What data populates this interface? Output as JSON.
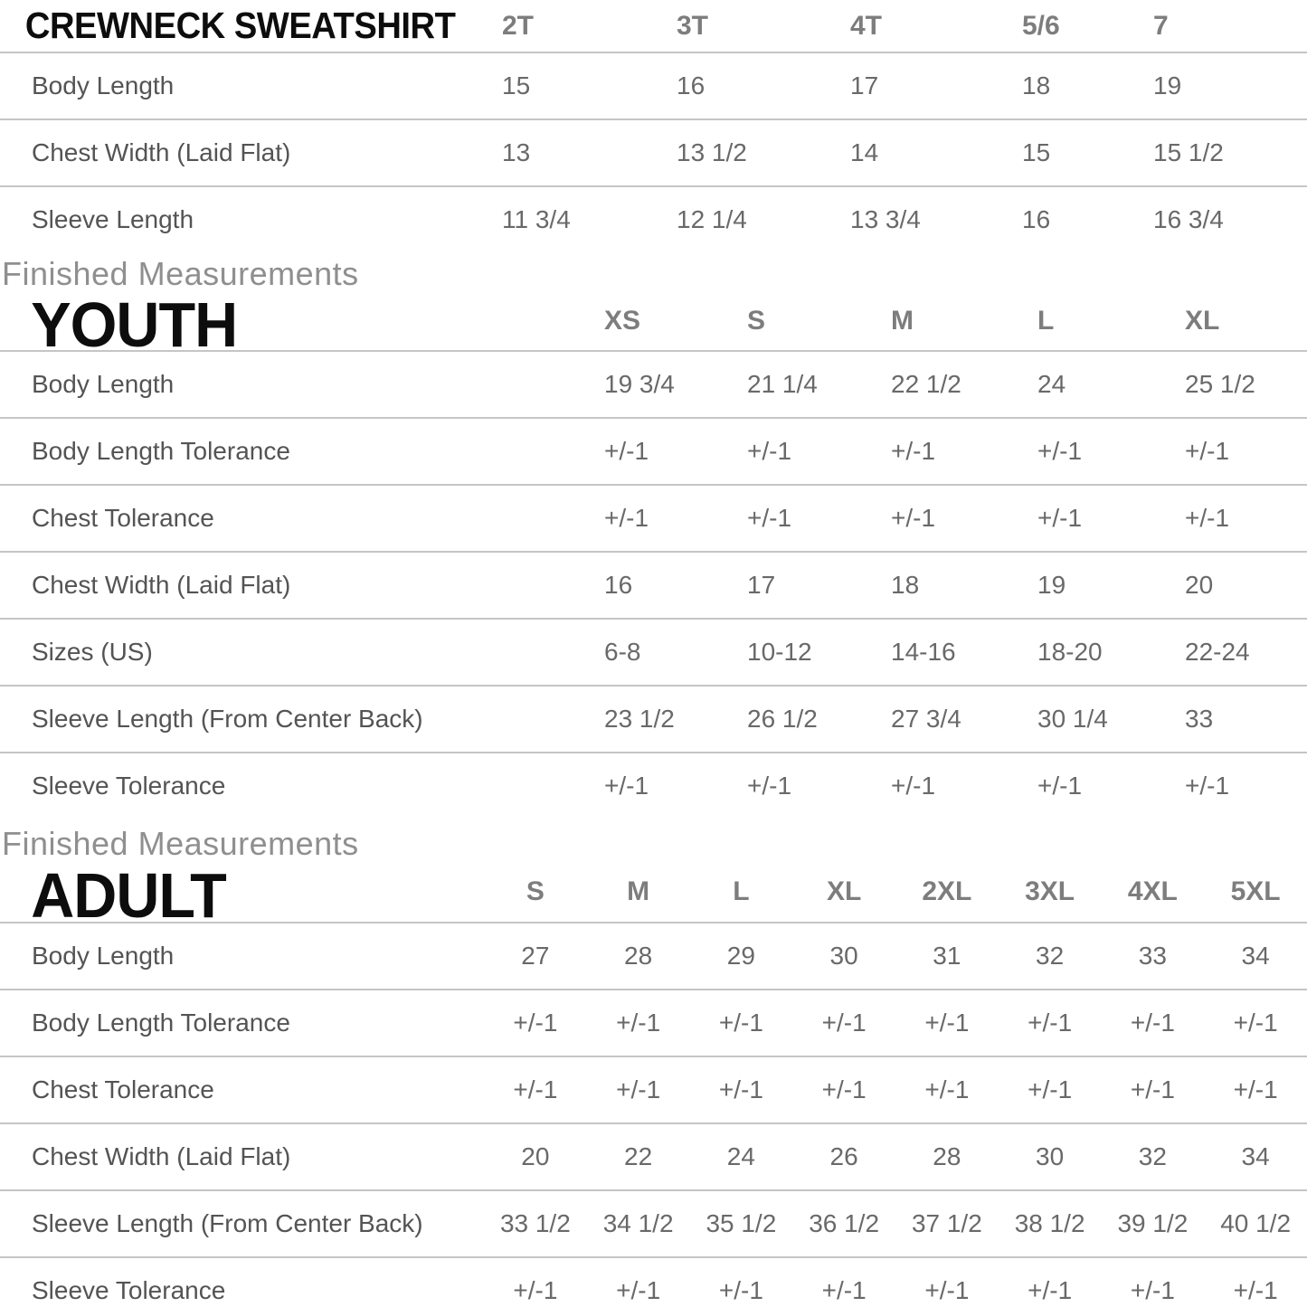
{
  "page": {
    "background": "#ffffff",
    "divider_color": "#c5c5c5",
    "title_color": "#0d0d0d",
    "column_header_color": "#7d7d7d",
    "row_label_color": "#545454",
    "value_color": "#696969",
    "section_label_color": "#8f8f8f"
  },
  "sections": [
    {
      "id": "toddler",
      "section_label": "",
      "title": "CREWNECK SWEATSHIRT",
      "columns": [
        "2T",
        "3T",
        "4T",
        "5/6",
        "7"
      ],
      "rows": [
        {
          "label": "Body Length",
          "values": [
            "15",
            "16",
            "17",
            "18",
            "19"
          ]
        },
        {
          "label": "Chest Width (Laid Flat)",
          "values": [
            "13",
            "13 1/2",
            "14",
            "15",
            "15 1/2"
          ]
        },
        {
          "label": "Sleeve Length",
          "values": [
            "11 3/4",
            "12 1/4",
            "13 3/4",
            "16",
            "16 3/4"
          ]
        }
      ]
    },
    {
      "id": "youth",
      "section_label": "Finished Measurements",
      "title": "YOUTH",
      "columns": [
        "XS",
        "S",
        "M",
        "L",
        "XL"
      ],
      "rows": [
        {
          "label": "Body Length",
          "values": [
            "19 3/4",
            "21 1/4",
            "22 1/2",
            "24",
            "25 1/2"
          ]
        },
        {
          "label": "Body Length Tolerance",
          "values": [
            "+/-1",
            "+/-1",
            "+/-1",
            "+/-1",
            "+/-1"
          ]
        },
        {
          "label": "Chest Tolerance",
          "values": [
            "+/-1",
            "+/-1",
            "+/-1",
            "+/-1",
            "+/-1"
          ]
        },
        {
          "label": "Chest Width (Laid Flat)",
          "values": [
            "16",
            "17",
            "18",
            "19",
            "20"
          ]
        },
        {
          "label": "Sizes (US)",
          "values": [
            "6-8",
            "10-12",
            "14-16",
            "18-20",
            "22-24"
          ]
        },
        {
          "label": "Sleeve Length (From Center Back)",
          "values": [
            "23 1/2",
            "26 1/2",
            "27 3/4",
            "30 1/4",
            "33"
          ]
        },
        {
          "label": "Sleeve Tolerance",
          "values": [
            "+/-1",
            "+/-1",
            "+/-1",
            "+/-1",
            "+/-1"
          ]
        }
      ]
    },
    {
      "id": "adult",
      "section_label": "Finished Measurements",
      "title": "ADULT",
      "columns": [
        "S",
        "M",
        "L",
        "XL",
        "2XL",
        "3XL",
        "4XL",
        "5XL"
      ],
      "rows": [
        {
          "label": "Body Length",
          "values": [
            "27",
            "28",
            "29",
            "30",
            "31",
            "32",
            "33",
            "34"
          ]
        },
        {
          "label": "Body Length Tolerance",
          "values": [
            "+/-1",
            "+/-1",
            "+/-1",
            "+/-1",
            "+/-1",
            "+/-1",
            "+/-1",
            "+/-1"
          ]
        },
        {
          "label": "Chest Tolerance",
          "values": [
            "+/-1",
            "+/-1",
            "+/-1",
            "+/-1",
            "+/-1",
            "+/-1",
            "+/-1",
            "+/-1"
          ]
        },
        {
          "label": "Chest Width (Laid Flat)",
          "values": [
            "20",
            "22",
            "24",
            "26",
            "28",
            "30",
            "32",
            "34"
          ]
        },
        {
          "label": "Sleeve Length (From Center Back)",
          "values": [
            "33 1/2",
            "34 1/2",
            "35 1/2",
            "36 1/2",
            "37 1/2",
            "38 1/2",
            "39 1/2",
            "40 1/2"
          ]
        },
        {
          "label": "Sleeve Tolerance",
          "values": [
            "+/-1",
            "+/-1",
            "+/-1",
            "+/-1",
            "+/-1",
            "+/-1",
            "+/-1",
            "+/-1"
          ]
        }
      ]
    }
  ]
}
